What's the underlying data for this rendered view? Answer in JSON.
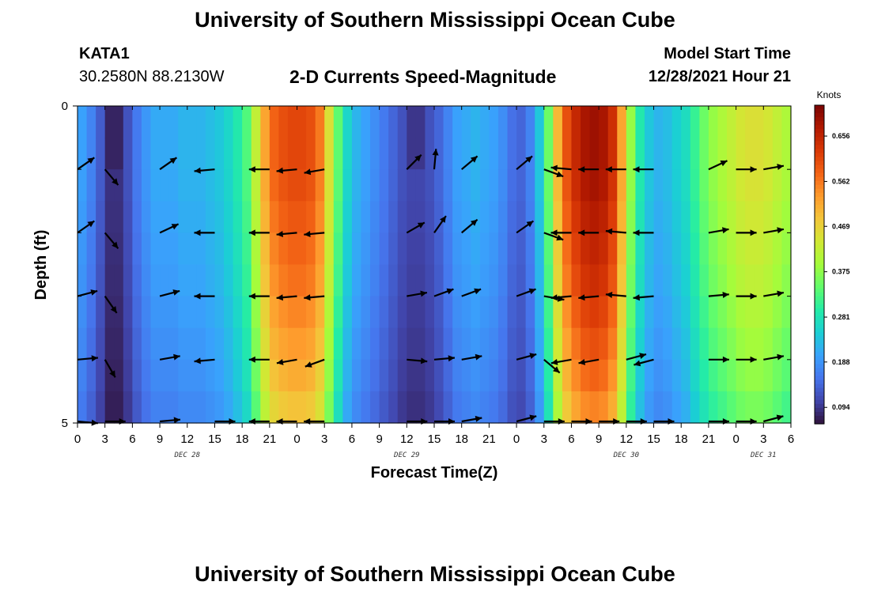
{
  "header": {
    "title": "University of Southern Mississippi Ocean Cube",
    "station_id": "KATA1",
    "coordinates": "30.2580N  88.2130W",
    "plot_title": "2-D Currents Speed-Magnitude",
    "model_start_label": "Model Start Time",
    "model_start_value": "12/28/2021 Hour 21"
  },
  "footer": {
    "title": "University of Southern Mississippi Ocean Cube"
  },
  "chart_data": {
    "type": "heatmap",
    "subtype": "time-depth current speed with vector arrows",
    "xlabel": "Forecast Time(Z)",
    "ylabel": "Depth (ft)",
    "x_ticks": [
      "0",
      "3",
      "6",
      "9",
      "12",
      "15",
      "18",
      "21",
      "0",
      "3",
      "6",
      "9",
      "12",
      "15",
      "18",
      "21",
      "0",
      "3",
      "6",
      "9",
      "12",
      "15",
      "18",
      "21",
      "0",
      "3",
      "6"
    ],
    "x_range_hours": [
      0,
      78
    ],
    "day_labels": [
      {
        "label": "DEC 28",
        "hour": 12
      },
      {
        "label": "DEC 29",
        "hour": 36
      },
      {
        "label": "DEC 30",
        "hour": 60
      },
      {
        "label": "DEC 31",
        "hour": 75
      }
    ],
    "y_ticks": [
      "0",
      "5"
    ],
    "y_range": [
      0,
      5
    ],
    "colorbar": {
      "label": "Knots",
      "ticks": [
        "0.656",
        "0.562",
        "0.469",
        "0.375",
        "0.281",
        "0.188",
        "0.094"
      ],
      "min": 0.06,
      "max": 0.72,
      "colors": [
        "#30123b",
        "#4145ab",
        "#4675ed",
        "#39a2fc",
        "#1bcfd4",
        "#24eca6",
        "#61fc6c",
        "#a4fc3b",
        "#d1e834",
        "#f3c63a",
        "#fe9b2d",
        "#f36315",
        "#d93806",
        "#b11901",
        "#7a0403"
      ]
    },
    "columns": [
      {
        "hour": 0.0,
        "speed": 0.2
      },
      {
        "hour": 1.0,
        "speed": 0.17
      },
      {
        "hour": 2.0,
        "speed": 0.13
      },
      {
        "hour": 3.0,
        "speed": 0.09
      },
      {
        "hour": 4.0,
        "speed": 0.09
      },
      {
        "hour": 5.0,
        "speed": 0.12
      },
      {
        "hour": 6.0,
        "speed": 0.16
      },
      {
        "hour": 7.0,
        "speed": 0.19
      },
      {
        "hour": 8.0,
        "speed": 0.21
      },
      {
        "hour": 9.0,
        "speed": 0.21
      },
      {
        "hour": 10.0,
        "speed": 0.21
      },
      {
        "hour": 11.0,
        "speed": 0.22
      },
      {
        "hour": 12.0,
        "speed": 0.22
      },
      {
        "hour": 13.0,
        "speed": 0.22
      },
      {
        "hour": 14.0,
        "speed": 0.23
      },
      {
        "hour": 15.0,
        "speed": 0.24
      },
      {
        "hour": 16.0,
        "speed": 0.26
      },
      {
        "hour": 17.0,
        "speed": 0.29
      },
      {
        "hour": 18.0,
        "speed": 0.33
      },
      {
        "hour": 19.0,
        "speed": 0.42
      },
      {
        "hour": 20.0,
        "speed": 0.52
      },
      {
        "hour": 21.0,
        "speed": 0.58
      },
      {
        "hour": 22.0,
        "speed": 0.6
      },
      {
        "hour": 23.0,
        "speed": 0.61
      },
      {
        "hour": 24.0,
        "speed": 0.61
      },
      {
        "hour": 25.0,
        "speed": 0.6
      },
      {
        "hour": 26.0,
        "speed": 0.56
      },
      {
        "hour": 27.0,
        "speed": 0.45
      },
      {
        "hour": 28.0,
        "speed": 0.34
      },
      {
        "hour": 29.0,
        "speed": 0.26
      },
      {
        "hour": 30.0,
        "speed": 0.22
      },
      {
        "hour": 31.0,
        "speed": 0.2
      },
      {
        "hour": 32.0,
        "speed": 0.18
      },
      {
        "hour": 33.0,
        "speed": 0.16
      },
      {
        "hour": 34.0,
        "speed": 0.14
      },
      {
        "hour": 35.0,
        "speed": 0.12
      },
      {
        "hour": 36.0,
        "speed": 0.11
      },
      {
        "hour": 37.0,
        "speed": 0.11
      },
      {
        "hour": 38.0,
        "speed": 0.12
      },
      {
        "hour": 39.0,
        "speed": 0.14
      },
      {
        "hour": 40.0,
        "speed": 0.17
      },
      {
        "hour": 41.0,
        "speed": 0.2
      },
      {
        "hour": 42.0,
        "speed": 0.21
      },
      {
        "hour": 43.0,
        "speed": 0.22
      },
      {
        "hour": 44.0,
        "speed": 0.21
      },
      {
        "hour": 45.0,
        "speed": 0.2
      },
      {
        "hour": 46.0,
        "speed": 0.18
      },
      {
        "hour": 47.0,
        "speed": 0.15
      },
      {
        "hour": 48.0,
        "speed": 0.14
      },
      {
        "hour": 49.0,
        "speed": 0.17
      },
      {
        "hour": 50.0,
        "speed": 0.24
      },
      {
        "hour": 51.0,
        "speed": 0.35
      },
      {
        "hour": 52.0,
        "speed": 0.5
      },
      {
        "hour": 53.0,
        "speed": 0.6
      },
      {
        "hour": 54.0,
        "speed": 0.65
      },
      {
        "hour": 55.0,
        "speed": 0.68
      },
      {
        "hour": 56.0,
        "speed": 0.69
      },
      {
        "hour": 57.0,
        "speed": 0.68
      },
      {
        "hour": 58.0,
        "speed": 0.64
      },
      {
        "hour": 59.0,
        "speed": 0.52
      },
      {
        "hour": 60.0,
        "speed": 0.38
      },
      {
        "hour": 61.0,
        "speed": 0.29
      },
      {
        "hour": 62.0,
        "speed": 0.24
      },
      {
        "hour": 63.0,
        "speed": 0.22
      },
      {
        "hour": 64.0,
        "speed": 0.23
      },
      {
        "hour": 65.0,
        "speed": 0.25
      },
      {
        "hour": 66.0,
        "speed": 0.27
      },
      {
        "hour": 67.0,
        "speed": 0.31
      },
      {
        "hour": 68.0,
        "speed": 0.35
      },
      {
        "hour": 69.0,
        "speed": 0.38
      },
      {
        "hour": 70.0,
        "speed": 0.4
      },
      {
        "hour": 71.0,
        "speed": 0.42
      },
      {
        "hour": 72.0,
        "speed": 0.44
      },
      {
        "hour": 73.0,
        "speed": 0.45
      },
      {
        "hour": 74.0,
        "speed": 0.45
      },
      {
        "hour": 75.0,
        "speed": 0.44
      },
      {
        "hour": 76.0,
        "speed": 0.42
      },
      {
        "hour": 77.0,
        "speed": 0.4
      }
    ],
    "depth_profile": [
      1.0,
      1.0,
      0.99,
      0.97,
      0.95,
      0.93,
      0.9,
      0.87,
      0.84,
      0.8
    ],
    "arrow_depths": [
      1.0,
      2.0,
      3.0,
      4.0,
      5.0
    ],
    "arrow_hours": [
      0,
      3,
      9,
      15,
      21,
      24,
      27,
      36,
      39,
      42,
      48,
      51,
      54,
      57,
      60,
      63,
      69,
      72,
      75
    ],
    "arrows": [
      {
        "hour": 0,
        "angles": [
          35,
          35,
          15,
          5,
          -5
        ]
      },
      {
        "hour": 3,
        "angles": [
          -50,
          -50,
          -55,
          -60,
          0
        ]
      },
      {
        "hour": 9,
        "angles": [
          35,
          25,
          15,
          10,
          5
        ]
      },
      {
        "hour": 15,
        "angles": [
          185,
          180,
          180,
          185,
          0
        ]
      },
      {
        "hour": 21,
        "angles": [
          180,
          180,
          180,
          180,
          180
        ]
      },
      {
        "hour": 24,
        "angles": [
          185,
          185,
          185,
          190,
          180
        ]
      },
      {
        "hour": 27,
        "angles": [
          190,
          185,
          185,
          200,
          180
        ]
      },
      {
        "hour": 36,
        "angles": [
          45,
          30,
          10,
          -5,
          0
        ]
      },
      {
        "hour": 39,
        "angles": [
          85,
          55,
          20,
          5,
          0
        ]
      },
      {
        "hour": 42,
        "angles": [
          40,
          40,
          20,
          10,
          10
        ]
      },
      {
        "hour": 48,
        "angles": [
          40,
          35,
          20,
          15,
          15
        ]
      },
      {
        "hour": 51,
        "angles": [
          -20,
          -20,
          -10,
          -40,
          0
        ]
      },
      {
        "hour": 54,
        "angles": [
          175,
          180,
          185,
          190,
          0
        ]
      },
      {
        "hour": 57,
        "angles": [
          180,
          180,
          185,
          190,
          0
        ]
      },
      {
        "hour": 60,
        "angles": [
          180,
          175,
          175,
          15,
          0
        ]
      },
      {
        "hour": 63,
        "angles": [
          180,
          180,
          185,
          195,
          0
        ]
      },
      {
        "hour": 69,
        "angles": [
          25,
          10,
          5,
          0,
          0
        ]
      },
      {
        "hour": 72,
        "angles": [
          0,
          0,
          0,
          0,
          0
        ]
      },
      {
        "hour": 75,
        "angles": [
          10,
          10,
          10,
          10,
          15
        ]
      }
    ]
  }
}
